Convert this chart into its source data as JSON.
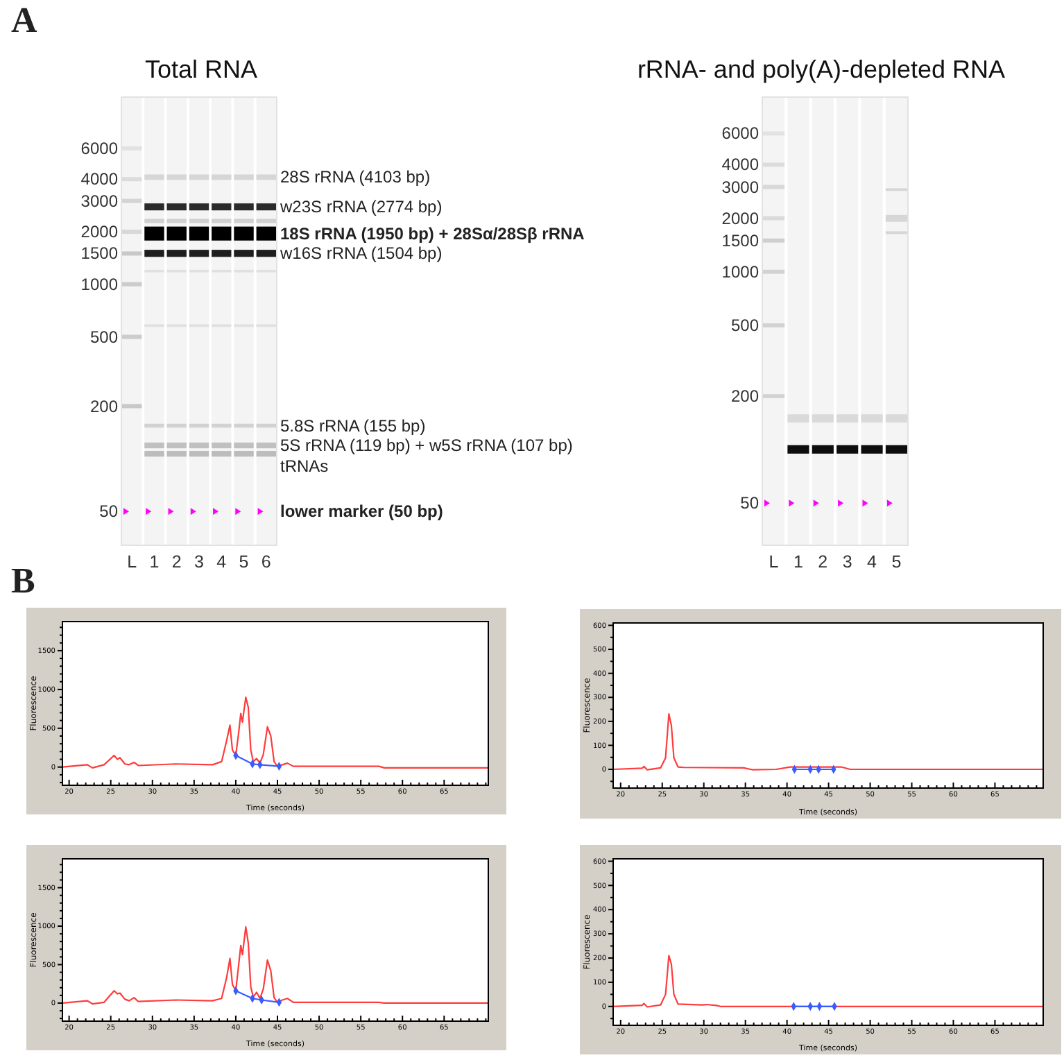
{
  "chart_data": [
    {
      "type": "bar",
      "title": "Total RNA",
      "categories": [
        "L",
        "1",
        "2",
        "3",
        "4",
        "5",
        "6"
      ],
      "log": true,
      "ylim": [
        32,
        11800
      ],
      "yticks": [
        6000,
        4000,
        3000,
        2000,
        1500,
        1000,
        500,
        200,
        50
      ],
      "series": [
        {
          "x": [
            "L",
            "L",
            "L",
            "L",
            "L",
            "L",
            "L",
            "L"
          ],
          "base": [
            5840,
            3890,
            2920,
            1945,
            1460,
            973,
            486,
            195
          ],
          "values": [
            330,
            220,
            165,
            110,
            82,
            55,
            28,
            11
          ],
          "colors": [
            "#e2e2e2",
            "#dcdcdc",
            "#d4d4d4",
            "#d8d8d8",
            "#c8c8c8",
            "#cccccc",
            "#cccccc",
            "#c8c8c8"
          ]
        },
        {
          "color": "#d6d6d6",
          "base": [
            null,
            3960,
            3960,
            3960,
            3960,
            3960,
            3960
          ],
          "values": [
            null,
            295,
            295,
            295,
            295,
            295,
            295
          ]
        },
        {
          "color": "#2b2b2b",
          "base": [
            null,
            2650,
            2650,
            2650,
            2650,
            2650,
            2650
          ],
          "values": [
            null,
            255,
            255,
            255,
            255,
            255,
            255
          ]
        },
        {
          "color": "#d0d0d0",
          "base": [
            null,
            2240,
            2240,
            2240,
            2240,
            2240,
            2240
          ],
          "values": [
            null,
            130,
            130,
            130,
            130,
            130,
            130
          ]
        },
        {
          "color": "#000000",
          "base": [
            null,
            1780,
            1780,
            1780,
            1780,
            1780,
            1780
          ],
          "values": [
            null,
            360,
            360,
            360,
            360,
            360,
            360
          ]
        },
        {
          "color": "#1e1e1e",
          "base": [
            null,
            1435,
            1435,
            1435,
            1435,
            1435,
            1435
          ],
          "values": [
            null,
            140,
            140,
            140,
            140,
            140,
            140
          ]
        },
        {
          "color": "#e0e0e0",
          "base": [
            null,
            1170,
            1170,
            1170,
            1170,
            1170,
            1170
          ],
          "values": [
            null,
            40,
            40,
            40,
            40,
            40,
            40
          ]
        },
        {
          "color": "#e0e0e0",
          "base": [
            null,
            570,
            570,
            570,
            570,
            570,
            570
          ],
          "values": [
            null,
            20,
            20,
            20,
            20,
            20,
            20
          ]
        },
        {
          "color": "#d2d2d2",
          "base": [
            null,
            151,
            151,
            151,
            151,
            151,
            151
          ],
          "values": [
            null,
            8,
            8,
            8,
            8,
            8,
            8
          ]
        },
        {
          "color": "#c0c0c0",
          "base": [
            null,
            115,
            115,
            115,
            115,
            115,
            115
          ],
          "values": [
            null,
            9,
            9,
            9,
            9,
            9,
            9
          ]
        },
        {
          "color": "#bcbcbc",
          "base": [
            null,
            103,
            103,
            103,
            103,
            103,
            103
          ],
          "values": [
            null,
            8,
            8,
            8,
            8,
            8,
            8
          ]
        },
        {
          "type": "scatter",
          "color": "#ff00ff",
          "marker": "triangle",
          "values": [
            50,
            50,
            50,
            50,
            50,
            50,
            50
          ]
        }
      ],
      "annotations": [
        "A",
        {
          "text": "28S rRNA (4103 bp)",
          "x": "6",
          "y": 4103
        },
        {
          "text": "w23S rRNA (2774 bp)",
          "x": "6",
          "y": 2774
        },
        {
          "text": "18S rRNA (1950 bp) + 28Sα/28Sβ rRNA",
          "x": "6",
          "y": 1950
        },
        {
          "text": "w16S rRNA (1504 bp)",
          "x": "6",
          "y": 1504
        },
        {
          "text": "5.8S rRNA (155 bp)",
          "x": "6",
          "y": 155
        },
        {
          "text": "5S rRNA (119 bp) + w5S rRNA (107 bp)",
          "x": "6",
          "y": 119
        },
        "tRNAs",
        {
          "text": "lower marker (50 bp)",
          "x": "6",
          "y": 50
        }
      ]
    },
    {
      "type": "bar",
      "title": "rRNA- and poly(A)-depleted RNA",
      "categories": [
        "L",
        "1",
        "2",
        "3",
        "4",
        "5"
      ],
      "log": true,
      "ylim": [
        29,
        9600
      ],
      "yticks": [
        6000,
        4000,
        3000,
        2000,
        1500,
        1000,
        500,
        200,
        50
      ],
      "series": [
        {
          "x": [
            "L",
            "L",
            "L",
            "L",
            "L",
            "L",
            "L",
            "L"
          ],
          "base": [
            5840,
            3895,
            2920,
            1950,
            1460,
            975,
            487,
            195
          ],
          "values": [
            320,
            215,
            160,
            105,
            80,
            52,
            26,
            10
          ],
          "colors": [
            "#e2e2e2",
            "#dcdcdc",
            "#d8d8d8",
            "#dadada",
            "#cfcfcf",
            "#d2d2d2",
            "#d2d2d2",
            "#d2d2d2"
          ]
        },
        {
          "color": "#dadada",
          "base": [
            null,
            142,
            142,
            142,
            142,
            142
          ],
          "values": [
            null,
            16,
            16,
            16,
            16,
            16
          ]
        },
        {
          "color": "#0d0d0d",
          "base": [
            null,
            95,
            95,
            95,
            95,
            95
          ],
          "values": [
            null,
            11,
            11,
            11,
            11,
            11
          ]
        },
        {
          "color": "#d6d6d6",
          "x": [
            "5",
            "5",
            "5"
          ],
          "base": [
            2850,
            1910,
            1630
          ],
          "values": [
            100,
            180,
            60
          ]
        },
        {
          "type": "scatter",
          "color": "#ff00ff",
          "marker": "triangle",
          "values": [
            50,
            50,
            50,
            50,
            50,
            50
          ]
        }
      ]
    },
    {
      "type": "line",
      "xlabel": "Time (seconds)",
      "ylabel": "Fluorescence",
      "annotations": [
        "B"
      ],
      "xlim": [
        19.2,
        70.3
      ],
      "ylim": [
        -235,
        1875
      ],
      "xticks": [
        20,
        {
          "value": 21,
          "label": null
        },
        {
          "value": 22,
          "label": null
        },
        {
          "value": 23,
          "label": null
        },
        {
          "value": 24,
          "label": null
        },
        25,
        {
          "value": 26,
          "label": null
        },
        {
          "value": 27,
          "label": null
        },
        {
          "value": 28,
          "label": null
        },
        {
          "value": 29,
          "label": null
        },
        30,
        {
          "value": 31,
          "label": null
        },
        {
          "value": 32,
          "label": null
        },
        {
          "value": 33,
          "label": null
        },
        {
          "value": 34,
          "label": null
        },
        35,
        {
          "value": 36,
          "label": null
        },
        {
          "value": 37,
          "label": null
        },
        {
          "value": 38,
          "label": null
        },
        {
          "value": 39,
          "label": null
        },
        40,
        {
          "value": 41,
          "label": null
        },
        {
          "value": 42,
          "label": null
        },
        {
          "value": 43,
          "label": null
        },
        {
          "value": 44,
          "label": null
        },
        45,
        {
          "value": 46,
          "label": null
        },
        {
          "value": 47,
          "label": null
        },
        {
          "value": 48,
          "label": null
        },
        {
          "value": 49,
          "label": null
        },
        50,
        {
          "value": 51,
          "label": null
        },
        {
          "value": 52,
          "label": null
        },
        {
          "value": 53,
          "label": null
        },
        {
          "value": 54,
          "label": null
        },
        55,
        {
          "value": 56,
          "label": null
        },
        {
          "value": 57,
          "label": null
        },
        {
          "value": 58,
          "label": null
        },
        {
          "value": 59,
          "label": null
        },
        60,
        {
          "value": 61,
          "label": null
        },
        {
          "value": 62,
          "label": null
        },
        {
          "value": 63,
          "label": null
        },
        {
          "value": 64,
          "label": null
        },
        65,
        {
          "value": 66,
          "label": null
        },
        {
          "value": 67,
          "label": null
        },
        {
          "value": 68,
          "label": null
        },
        {
          "value": 69,
          "label": null
        },
        {
          "value": 70,
          "label": null
        }
      ],
      "yticks": [
        {
          "value": -200,
          "label": null
        },
        {
          "value": -100,
          "label": null
        },
        0,
        {
          "value": 100,
          "label": null
        },
        {
          "value": 200,
          "label": null
        },
        {
          "value": 300,
          "label": null
        },
        {
          "value": 400,
          "label": null
        },
        500,
        {
          "value": 600,
          "label": null
        },
        {
          "value": 700,
          "label": null
        },
        {
          "value": 800,
          "label": null
        },
        {
          "value": 900,
          "label": null
        },
        1000,
        {
          "value": 1100,
          "label": null
        },
        {
          "value": 1200,
          "label": null
        },
        {
          "value": 1300,
          "label": null
        },
        {
          "value": 1400,
          "label": null
        },
        1500,
        {
          "value": 1600,
          "label": null
        },
        {
          "value": 1700,
          "label": null
        },
        {
          "value": 1800,
          "label": null
        }
      ],
      "series": [
        {
          "color": "#ff3b3b",
          "x": [
            19.2,
            22.2,
            22.8,
            24.2,
            25.4,
            25.8,
            26.1,
            26.7,
            27.2,
            27.8,
            28.3,
            32.8,
            37.2,
            38.3,
            38.9,
            39.3,
            39.6,
            40.0,
            40.3,
            40.6,
            40.8,
            41.2,
            41.5,
            41.8,
            42.1,
            42.5,
            42.9,
            43.3,
            43.8,
            44.2,
            44.6,
            45.0,
            45.6,
            46.2,
            46.9,
            57.2,
            57.8,
            70.3
          ],
          "values": [
            0,
            30,
            -10,
            30,
            150,
            100,
            120,
            40,
            30,
            60,
            20,
            40,
            30,
            70,
            340,
            540,
            220,
            150,
            400,
            690,
            580,
            900,
            770,
            220,
            70,
            110,
            50,
            160,
            520,
            400,
            70,
            10,
            30,
            50,
            10,
            10,
            -10,
            -10
          ]
        },
        {
          "color": "#3a5cff",
          "marker": "diamond",
          "x": [
            40.0,
            42.0,
            42.9,
            45.2
          ],
          "values": [
            150,
            40,
            30,
            10
          ]
        }
      ]
    },
    {
      "type": "line",
      "xlabel": "Time (seconds)",
      "ylabel": "Fluorescence",
      "xlim": [
        19.1,
        70.8
      ],
      "ylim": [
        -78,
        610
      ],
      "xticks": [
        20,
        {
          "value": 21,
          "label": null
        },
        {
          "value": 22,
          "label": null
        },
        {
          "value": 23,
          "label": null
        },
        {
          "value": 24,
          "label": null
        },
        25,
        {
          "value": 26,
          "label": null
        },
        {
          "value": 27,
          "label": null
        },
        {
          "value": 28,
          "label": null
        },
        {
          "value": 29,
          "label": null
        },
        30,
        {
          "value": 31,
          "label": null
        },
        {
          "value": 32,
          "label": null
        },
        {
          "value": 33,
          "label": null
        },
        {
          "value": 34,
          "label": null
        },
        35,
        {
          "value": 36,
          "label": null
        },
        {
          "value": 37,
          "label": null
        },
        {
          "value": 38,
          "label": null
        },
        {
          "value": 39,
          "label": null
        },
        40,
        {
          "value": 41,
          "label": null
        },
        {
          "value": 42,
          "label": null
        },
        {
          "value": 43,
          "label": null
        },
        {
          "value": 44,
          "label": null
        },
        45,
        {
          "value": 46,
          "label": null
        },
        {
          "value": 47,
          "label": null
        },
        {
          "value": 48,
          "label": null
        },
        {
          "value": 49,
          "label": null
        },
        50,
        {
          "value": 51,
          "label": null
        },
        {
          "value": 52,
          "label": null
        },
        {
          "value": 53,
          "label": null
        },
        {
          "value": 54,
          "label": null
        },
        55,
        {
          "value": 56,
          "label": null
        },
        {
          "value": 57,
          "label": null
        },
        {
          "value": 58,
          "label": null
        },
        {
          "value": 59,
          "label": null
        },
        60,
        {
          "value": 61,
          "label": null
        },
        {
          "value": 62,
          "label": null
        },
        {
          "value": 63,
          "label": null
        },
        {
          "value": 64,
          "label": null
        },
        65,
        {
          "value": 66,
          "label": null
        },
        {
          "value": 67,
          "label": null
        },
        {
          "value": 68,
          "label": null
        },
        {
          "value": 69,
          "label": null
        },
        {
          "value": 70,
          "label": null
        }
      ],
      "yticks": [
        {
          "value": -50,
          "label": null
        },
        0,
        {
          "value": 50,
          "label": null
        },
        100,
        {
          "value": 150,
          "label": null
        },
        200,
        {
          "value": 250,
          "label": null
        },
        300,
        {
          "value": 350,
          "label": null
        },
        400,
        {
          "value": 450,
          "label": null
        },
        500,
        {
          "value": 550,
          "label": null
        },
        600
      ],
      "series": [
        {
          "color": "#ff3b3b",
          "x": [
            19.1,
            22.6,
            22.8,
            23.2,
            24.8,
            25.4,
            25.8,
            26.1,
            26.4,
            26.9,
            27.6,
            34.8,
            35.9,
            38.7,
            40.4,
            46.5,
            47.6,
            70.8
          ],
          "values": [
            0,
            5,
            12,
            -2,
            6,
            48,
            231,
            183,
            48,
            10,
            8,
            6,
            -2,
            0,
            10,
            10,
            0,
            0
          ]
        },
        {
          "color": "#3a5cff",
          "marker": "diamond",
          "x": [
            40.9,
            42.8,
            43.8,
            45.6
          ],
          "values": [
            0,
            0,
            0,
            0
          ]
        }
      ]
    },
    {
      "type": "line",
      "xlabel": "Time (seconds)",
      "ylabel": "Fluorescence",
      "xlim": [
        19.2,
        70.3
      ],
      "ylim": [
        -235,
        1875
      ],
      "xticks": [
        20,
        {
          "value": 21,
          "label": null
        },
        {
          "value": 22,
          "label": null
        },
        {
          "value": 23,
          "label": null
        },
        {
          "value": 24,
          "label": null
        },
        25,
        {
          "value": 26,
          "label": null
        },
        {
          "value": 27,
          "label": null
        },
        {
          "value": 28,
          "label": null
        },
        {
          "value": 29,
          "label": null
        },
        30,
        {
          "value": 31,
          "label": null
        },
        {
          "value": 32,
          "label": null
        },
        {
          "value": 33,
          "label": null
        },
        {
          "value": 34,
          "label": null
        },
        35,
        {
          "value": 36,
          "label": null
        },
        {
          "value": 37,
          "label": null
        },
        {
          "value": 38,
          "label": null
        },
        {
          "value": 39,
          "label": null
        },
        40,
        {
          "value": 41,
          "label": null
        },
        {
          "value": 42,
          "label": null
        },
        {
          "value": 43,
          "label": null
        },
        {
          "value": 44,
          "label": null
        },
        45,
        {
          "value": 46,
          "label": null
        },
        {
          "value": 47,
          "label": null
        },
        {
          "value": 48,
          "label": null
        },
        {
          "value": 49,
          "label": null
        },
        50,
        {
          "value": 51,
          "label": null
        },
        {
          "value": 52,
          "label": null
        },
        {
          "value": 53,
          "label": null
        },
        {
          "value": 54,
          "label": null
        },
        55,
        {
          "value": 56,
          "label": null
        },
        {
          "value": 57,
          "label": null
        },
        {
          "value": 58,
          "label": null
        },
        {
          "value": 59,
          "label": null
        },
        60,
        {
          "value": 61,
          "label": null
        },
        {
          "value": 62,
          "label": null
        },
        {
          "value": 63,
          "label": null
        },
        {
          "value": 64,
          "label": null
        },
        65,
        {
          "value": 66,
          "label": null
        },
        {
          "value": 67,
          "label": null
        },
        {
          "value": 68,
          "label": null
        },
        {
          "value": 69,
          "label": null
        },
        {
          "value": 70,
          "label": null
        }
      ],
      "yticks": [
        {
          "value": -200,
          "label": null
        },
        {
          "value": -100,
          "label": null
        },
        0,
        {
          "value": 100,
          "label": null
        },
        {
          "value": 200,
          "label": null
        },
        {
          "value": 300,
          "label": null
        },
        {
          "value": 400,
          "label": null
        },
        500,
        {
          "value": 600,
          "label": null
        },
        {
          "value": 700,
          "label": null
        },
        {
          "value": 800,
          "label": null
        },
        {
          "value": 900,
          "label": null
        },
        1000,
        {
          "value": 1100,
          "label": null
        },
        {
          "value": 1200,
          "label": null
        },
        {
          "value": 1300,
          "label": null
        },
        {
          "value": 1400,
          "label": null
        },
        1500,
        {
          "value": 1600,
          "label": null
        },
        {
          "value": 1700,
          "label": null
        },
        {
          "value": 1800,
          "label": null
        }
      ],
      "series": [
        {
          "color": "#ff3b3b",
          "x": [
            19.2,
            22.2,
            22.8,
            24.2,
            25.4,
            25.8,
            26.1,
            26.7,
            27.2,
            27.8,
            28.3,
            32.8,
            37.2,
            38.3,
            38.9,
            39.3,
            39.6,
            40.0,
            40.3,
            40.6,
            40.8,
            41.2,
            41.5,
            41.8,
            42.1,
            42.5,
            42.9,
            43.3,
            43.8,
            44.2,
            44.6,
            45.0,
            45.6,
            46.2,
            46.9,
            57.2,
            57.8,
            70.3
          ],
          "values": [
            0,
            30,
            -10,
            10,
            160,
            120,
            130,
            50,
            30,
            70,
            20,
            40,
            30,
            60,
            330,
            580,
            240,
            160,
            450,
            750,
            630,
            990,
            780,
            210,
            80,
            140,
            60,
            180,
            560,
            420,
            70,
            10,
            40,
            60,
            10,
            10,
            0,
            0
          ]
        },
        {
          "color": "#3a5cff",
          "marker": "diamond",
          "x": [
            40.0,
            42.0,
            43.1,
            45.2
          ],
          "values": [
            160,
            60,
            40,
            10
          ]
        }
      ]
    },
    {
      "type": "line",
      "xlabel": "Time (seconds)",
      "ylabel": "Fluorescence",
      "xlim": [
        19.1,
        70.8
      ],
      "ylim": [
        -78,
        610
      ],
      "xticks": [
        20,
        {
          "value": 21,
          "label": null
        },
        {
          "value": 22,
          "label": null
        },
        {
          "value": 23,
          "label": null
        },
        {
          "value": 24,
          "label": null
        },
        25,
        {
          "value": 26,
          "label": null
        },
        {
          "value": 27,
          "label": null
        },
        {
          "value": 28,
          "label": null
        },
        {
          "value": 29,
          "label": null
        },
        30,
        {
          "value": 31,
          "label": null
        },
        {
          "value": 32,
          "label": null
        },
        {
          "value": 33,
          "label": null
        },
        {
          "value": 34,
          "label": null
        },
        35,
        {
          "value": 36,
          "label": null
        },
        {
          "value": 37,
          "label": null
        },
        {
          "value": 38,
          "label": null
        },
        {
          "value": 39,
          "label": null
        },
        40,
        {
          "value": 41,
          "label": null
        },
        {
          "value": 42,
          "label": null
        },
        {
          "value": 43,
          "label": null
        },
        {
          "value": 44,
          "label": null
        },
        45,
        {
          "value": 46,
          "label": null
        },
        {
          "value": 47,
          "label": null
        },
        {
          "value": 48,
          "label": null
        },
        {
          "value": 49,
          "label": null
        },
        50,
        {
          "value": 51,
          "label": null
        },
        {
          "value": 52,
          "label": null
        },
        {
          "value": 53,
          "label": null
        },
        {
          "value": 54,
          "label": null
        },
        55,
        {
          "value": 56,
          "label": null
        },
        {
          "value": 57,
          "label": null
        },
        {
          "value": 58,
          "label": null
        },
        {
          "value": 59,
          "label": null
        },
        60,
        {
          "value": 61,
          "label": null
        },
        {
          "value": 62,
          "label": null
        },
        {
          "value": 63,
          "label": null
        },
        {
          "value": 64,
          "label": null
        },
        65,
        {
          "value": 66,
          "label": null
        },
        {
          "value": 67,
          "label": null
        },
        {
          "value": 68,
          "label": null
        },
        {
          "value": 69,
          "label": null
        },
        {
          "value": 70,
          "label": null
        }
      ],
      "yticks": [
        {
          "value": -50,
          "label": null
        },
        0,
        {
          "value": 50,
          "label": null
        },
        100,
        {
          "value": 150,
          "label": null
        },
        200,
        {
          "value": 250,
          "label": null
        },
        300,
        {
          "value": 350,
          "label": null
        },
        400,
        {
          "value": 450,
          "label": null
        },
        500,
        {
          "value": 550,
          "label": null
        },
        600
      ],
      "series": [
        {
          "color": "#ff3b3b",
          "x": [
            19.1,
            22.6,
            22.8,
            23.2,
            24.8,
            25.4,
            25.8,
            26.1,
            26.4,
            26.9,
            29.8,
            30.3,
            31.5,
            32.0,
            70.8
          ],
          "values": [
            0,
            5,
            12,
            -2,
            6,
            50,
            210,
            175,
            50,
            10,
            6,
            8,
            4,
            0,
            0
          ]
        },
        {
          "color": "#3a5cff",
          "marker": "diamond",
          "x": [
            40.8,
            42.8,
            43.9,
            45.7
          ],
          "values": [
            0,
            0,
            0,
            0
          ]
        }
      ]
    }
  ]
}
